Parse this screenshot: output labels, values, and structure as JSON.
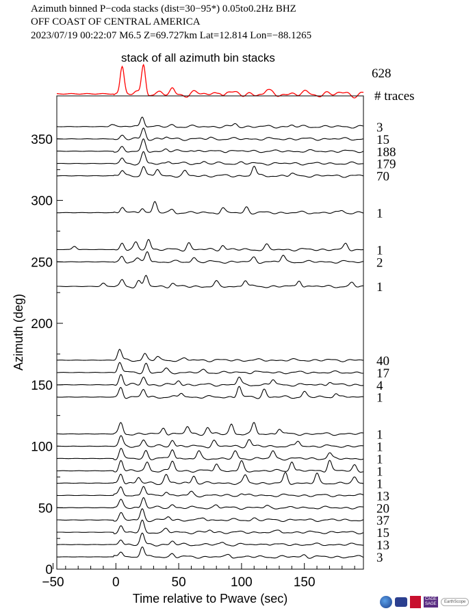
{
  "header": {
    "line1": "Azimuth binned P−coda stacks (dist=30−95*)  0.05to0.2Hz  BHZ",
    "line2": "OFF COAST OF CENTRAL AMERICA",
    "line3": "2023/07/19  00:22:07  M6.5  Z=69.727km Lat=12.814 Lon=−88.1265"
  },
  "colors": {
    "stack": "#ff0000",
    "trace": "#000000"
  },
  "chart_data": {
    "type": "line",
    "title": "stack of all azimuth bin stacks",
    "total_traces": "628",
    "traces_header": "# traces",
    "xlabel": "Time relative to Pwave (sec)",
    "ylabel": "Azimuth (deg)",
    "xlim": [
      -47,
      197
    ],
    "ylim": [
      0,
      385
    ],
    "xticks": [
      -50,
      0,
      50,
      100,
      150
    ],
    "xtick_labels": [
      "−50",
      "0",
      "50",
      "100",
      "150"
    ],
    "yticks": [
      0,
      50,
      100,
      150,
      200,
      250,
      300,
      350
    ],
    "ytick_labels": [
      "0",
      "50",
      "100",
      "150",
      "200",
      "250",
      "300",
      "350"
    ],
    "stack_peaks": [
      [
        5,
        1.0
      ],
      [
        22,
        1.15
      ],
      [
        45,
        0.15
      ],
      [
        83,
        0.12
      ],
      [
        120,
        0.08
      ]
    ],
    "series": [
      {
        "azimuth": 360,
        "count": "3",
        "peaks": [
          [
            -3,
            0.2
          ],
          [
            21,
            1.0
          ],
          [
            45,
            0.15
          ],
          [
            95,
            0.25
          ],
          [
            140,
            0.12
          ]
        ]
      },
      {
        "azimuth": 350,
        "count": "15",
        "peaks": [
          [
            5,
            0.3
          ],
          [
            22,
            1.0
          ],
          [
            40,
            0.15
          ],
          [
            75,
            0.1
          ]
        ]
      },
      {
        "azimuth": 340,
        "count": "188",
        "peaks": [
          [
            5,
            0.4
          ],
          [
            22,
            1.0
          ],
          [
            40,
            0.2
          ],
          [
            60,
            0.15
          ],
          [
            90,
            0.1
          ]
        ]
      },
      {
        "azimuth": 330,
        "count": "179",
        "peaks": [
          [
            5,
            0.5
          ],
          [
            22,
            1.0
          ],
          [
            42,
            0.25
          ],
          [
            70,
            0.2
          ],
          [
            100,
            0.1
          ]
        ]
      },
      {
        "azimuth": 320,
        "count": "70",
        "peaks": [
          [
            5,
            0.5
          ],
          [
            22,
            0.9
          ],
          [
            33,
            0.6
          ],
          [
            55,
            0.4
          ],
          [
            110,
            0.9
          ],
          [
            140,
            0.2
          ]
        ]
      },
      {
        "azimuth": 290,
        "count": "1",
        "peaks": [
          [
            5,
            0.5
          ],
          [
            21,
            0.5
          ],
          [
            31,
            1.0
          ],
          [
            45,
            0.3
          ],
          [
            85,
            0.4
          ],
          [
            104,
            0.5
          ],
          [
            180,
            0.2
          ]
        ]
      },
      {
        "azimuth": 260,
        "count": "1",
        "peaks": [
          [
            -33,
            0.3
          ],
          [
            5,
            0.6
          ],
          [
            16,
            0.6
          ],
          [
            26,
            1.0
          ],
          [
            58,
            0.6
          ],
          [
            85,
            0.4
          ],
          [
            120,
            0.4
          ],
          [
            183,
            0.5
          ]
        ]
      },
      {
        "azimuth": 250,
        "count": "2",
        "peaks": [
          [
            5,
            0.5
          ],
          [
            17,
            0.3
          ],
          [
            25,
            1.0
          ],
          [
            62,
            0.4
          ],
          [
            110,
            0.4
          ],
          [
            133,
            0.6
          ]
        ]
      },
      {
        "azimuth": 230,
        "count": "1",
        "peaks": [
          [
            -10,
            0.3
          ],
          [
            5,
            0.6
          ],
          [
            18,
            0.5
          ],
          [
            24,
            1.0
          ],
          [
            45,
            0.3
          ],
          [
            80,
            0.4
          ],
          [
            103,
            0.6
          ],
          [
            146,
            0.6
          ],
          [
            188,
            0.3
          ]
        ]
      },
      {
        "azimuth": 170,
        "count": "40",
        "peaks": [
          [
            3,
            1.0
          ],
          [
            23,
            0.6
          ],
          [
            33,
            0.3
          ],
          [
            55,
            0.15
          ]
        ]
      },
      {
        "azimuth": 160,
        "count": "17",
        "peaks": [
          [
            3,
            1.0
          ],
          [
            24,
            0.8
          ],
          [
            40,
            0.3
          ],
          [
            70,
            0.2
          ],
          [
            110,
            0.15
          ]
        ]
      },
      {
        "azimuth": 150,
        "count": "4",
        "peaks": [
          [
            4,
            1.0
          ],
          [
            22,
            0.7
          ],
          [
            50,
            0.4
          ],
          [
            98,
            0.7
          ],
          [
            125,
            0.5
          ],
          [
            170,
            0.3
          ]
        ]
      },
      {
        "azimuth": 140,
        "count": "1",
        "peaks": [
          [
            4,
            0.9
          ],
          [
            22,
            0.7
          ],
          [
            52,
            0.4
          ],
          [
            98,
            1.0
          ],
          [
            118,
            0.7
          ],
          [
            150,
            0.5
          ],
          [
            175,
            0.4
          ]
        ]
      },
      {
        "azimuth": 110,
        "count": "1",
        "peaks": [
          [
            4,
            1.0
          ],
          [
            38,
            0.6
          ],
          [
            57,
            0.7
          ],
          [
            73,
            0.6
          ],
          [
            92,
            0.9
          ],
          [
            110,
            1.0
          ],
          [
            130,
            0.5
          ]
        ]
      },
      {
        "azimuth": 100,
        "count": "1",
        "peaks": [
          [
            4,
            0.9
          ],
          [
            22,
            0.6
          ],
          [
            45,
            0.6
          ],
          [
            78,
            0.5
          ],
          [
            106,
            0.6
          ],
          [
            145,
            0.5
          ]
        ]
      },
      {
        "azimuth": 90,
        "count": "1",
        "peaks": [
          [
            4,
            0.9
          ],
          [
            24,
            0.7
          ],
          [
            45,
            0.9
          ],
          [
            66,
            0.6
          ],
          [
            95,
            0.6
          ],
          [
            125,
            0.7
          ],
          [
            170,
            0.5
          ]
        ]
      },
      {
        "azimuth": 80,
        "count": "1",
        "peaks": [
          [
            4,
            1.0
          ],
          [
            25,
            0.8
          ],
          [
            45,
            0.9
          ],
          [
            80,
            0.7
          ],
          [
            100,
            0.8
          ],
          [
            140,
            0.9
          ],
          [
            170,
            1.0
          ],
          [
            190,
            0.5
          ]
        ]
      },
      {
        "azimuth": 70,
        "count": "1",
        "peaks": [
          [
            4,
            0.9
          ],
          [
            18,
            0.5
          ],
          [
            40,
            0.8
          ],
          [
            62,
            0.7
          ],
          [
            103,
            0.7
          ],
          [
            135,
            0.9
          ],
          [
            160,
            0.8
          ],
          [
            190,
            0.5
          ]
        ]
      },
      {
        "azimuth": 60,
        "count": "13",
        "peaks": [
          [
            4,
            0.8
          ],
          [
            22,
            0.9
          ],
          [
            40,
            0.4
          ],
          [
            60,
            0.3
          ],
          [
            100,
            0.2
          ]
        ]
      },
      {
        "azimuth": 50,
        "count": "20",
        "peaks": [
          [
            4,
            0.7
          ],
          [
            22,
            1.0
          ],
          [
            45,
            0.3
          ],
          [
            80,
            0.25
          ],
          [
            120,
            0.15
          ]
        ]
      },
      {
        "azimuth": 40,
        "count": "37",
        "peaks": [
          [
            4,
            0.6
          ],
          [
            21,
            1.0
          ],
          [
            42,
            0.3
          ],
          [
            70,
            0.2
          ],
          [
            110,
            0.15
          ]
        ]
      },
      {
        "azimuth": 30,
        "count": "15",
        "peaks": [
          [
            4,
            0.6
          ],
          [
            21,
            1.0
          ],
          [
            40,
            0.3
          ],
          [
            75,
            0.2
          ],
          [
            130,
            0.15
          ]
        ]
      },
      {
        "azimuth": 20,
        "count": "13",
        "peaks": [
          [
            4,
            0.5
          ],
          [
            21,
            1.0
          ],
          [
            45,
            0.3
          ],
          [
            85,
            0.2
          ],
          [
            120,
            0.15
          ]
        ]
      },
      {
        "azimuth": 10,
        "count": "3",
        "peaks": [
          [
            4,
            0.5
          ],
          [
            21,
            1.0
          ],
          [
            45,
            0.3
          ],
          [
            90,
            0.2
          ],
          [
            150,
            0.2
          ]
        ]
      }
    ]
  }
}
